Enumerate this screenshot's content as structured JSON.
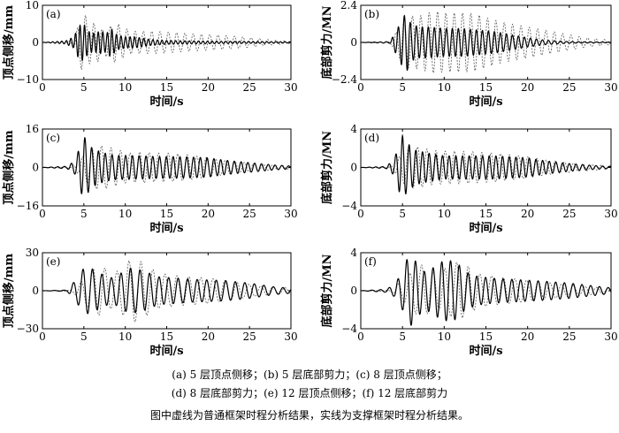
{
  "chart_data": [
    {
      "type": "line",
      "panel_label": "(a)",
      "xlabel": "时间/s",
      "ylabel": "顶点侧移/mm",
      "xlim": [
        0,
        30
      ],
      "ylim": [
        -10,
        10
      ],
      "xticks": [
        0,
        5,
        10,
        15,
        20,
        25,
        30
      ],
      "yticks": [
        -10,
        0,
        10
      ],
      "grid": false,
      "series": [
        {
          "style": "dashed",
          "t": [
            0,
            3.2,
            4.0,
            4.6,
            5.0,
            5.4,
            6.0,
            6.6,
            7.2,
            8.0,
            8.8,
            9.8,
            10.8,
            12.0,
            13.5,
            15.0,
            17.0,
            19.0,
            21.0,
            23.0,
            25.0,
            27.0,
            30.0
          ],
          "amp": [
            0,
            0.3,
            2.0,
            7.0,
            8.0,
            6.5,
            5.0,
            5.5,
            3.5,
            4.0,
            5.5,
            4.0,
            3.0,
            3.0,
            3.0,
            2.8,
            2.5,
            2.2,
            2.0,
            1.7,
            1.3,
            0.8,
            0.3
          ],
          "period": 1.0,
          "phase": 0.3
        },
        {
          "style": "solid",
          "t": [
            0,
            2.8,
            3.8,
            4.4,
            5.0,
            5.5,
            6.2,
            7.0,
            7.8,
            8.2,
            9.0,
            10.0,
            11.0,
            12.0,
            13.0,
            15.0,
            18.0,
            22.0,
            26.0,
            30.0
          ],
          "amp": [
            0,
            0.4,
            1.5,
            4.5,
            5.0,
            3.0,
            2.5,
            3.0,
            2.5,
            4.0,
            2.0,
            1.5,
            1.5,
            1.2,
            0.8,
            0.5,
            0.4,
            0.3,
            0.25,
            0.15
          ],
          "period": 0.55,
          "phase": 0.0
        }
      ]
    },
    {
      "type": "line",
      "panel_label": "(b)",
      "xlabel": "时间/s",
      "ylabel": "底部剪力/MN",
      "xlim": [
        0,
        30
      ],
      "ylim": [
        -2.4,
        2.4
      ],
      "xticks": [
        0,
        5,
        10,
        15,
        20,
        25,
        30
      ],
      "yticks": [
        -2.4,
        0,
        2.4
      ],
      "grid": false,
      "series": [
        {
          "style": "dashed",
          "t": [
            0,
            3.5,
            4.5,
            5.2,
            6.0,
            7.0,
            8.0,
            9.0,
            10.0,
            11.0,
            12.0,
            13.0,
            14.0,
            15.0,
            17.0,
            19.0,
            21.0,
            23.0,
            25.0,
            27.0,
            30.0
          ],
          "amp": [
            0,
            0.05,
            0.9,
            1.6,
            1.7,
            1.7,
            1.9,
            2.0,
            1.9,
            1.9,
            1.9,
            1.9,
            1.8,
            1.6,
            1.3,
            1.1,
            0.9,
            0.7,
            0.5,
            0.3,
            0.15
          ],
          "period": 1.0,
          "phase": 0.3
        },
        {
          "style": "solid",
          "t": [
            0,
            3.5,
            4.5,
            5.0,
            5.5,
            6.0,
            7.0,
            8.0,
            10.0,
            12.0,
            14.0,
            16.0,
            18.0,
            20.0,
            22.0,
            25.0,
            30.0
          ],
          "amp": [
            0,
            0.05,
            1.0,
            1.6,
            1.9,
            1.2,
            1.0,
            1.0,
            0.9,
            0.9,
            0.8,
            0.7,
            0.5,
            0.3,
            0.15,
            0.05,
            0.02
          ],
          "period": 0.72,
          "phase": 0.0
        }
      ]
    },
    {
      "type": "line",
      "panel_label": "(c)",
      "xlabel": "时间/s",
      "ylabel": "顶点侧移/mm",
      "xlim": [
        0,
        30
      ],
      "ylim": [
        -16,
        16
      ],
      "xticks": [
        0,
        5,
        10,
        15,
        20,
        25,
        30
      ],
      "yticks": [
        -16,
        0,
        16
      ],
      "grid": false,
      "series": [
        {
          "style": "dashed",
          "t": [
            0,
            3.5,
            4.5,
            5.5,
            6.5,
            7.5,
            8.5,
            9.5,
            10.5,
            12.0,
            13.5,
            15.0,
            17.0,
            19.0,
            21.0,
            23.0,
            25.0,
            27.0,
            30.0
          ],
          "amp": [
            0,
            0.3,
            3.0,
            7.0,
            9.0,
            9.0,
            8.0,
            7.0,
            6.0,
            6.5,
            6.0,
            6.0,
            5.5,
            4.5,
            3.5,
            2.5,
            1.8,
            1.2,
            0.6
          ],
          "period": 1.15,
          "phase": 0.3
        },
        {
          "style": "solid",
          "t": [
            0,
            3.0,
            4.0,
            4.6,
            5.0,
            5.4,
            6.0,
            7.0,
            8.0,
            9.0,
            10.0,
            12.0,
            14.0,
            16.0,
            18.0,
            20.0,
            22.0,
            25.0,
            28.0,
            30.0
          ],
          "amp": [
            0,
            0.5,
            3.0,
            10.0,
            13.0,
            11.0,
            8.0,
            6.5,
            5.5,
            5.0,
            5.0,
            4.8,
            4.5,
            4.5,
            4.3,
            4.0,
            3.0,
            2.0,
            1.0,
            0.6
          ],
          "period": 0.82,
          "phase": 0.0
        }
      ]
    },
    {
      "type": "line",
      "panel_label": "(d)",
      "xlabel": "时间/s",
      "ylabel": "底部剪力/MN",
      "xlim": [
        0,
        30
      ],
      "ylim": [
        -4,
        4
      ],
      "xticks": [
        0,
        5,
        10,
        15,
        20,
        25,
        30
      ],
      "yticks": [
        -4,
        0,
        4
      ],
      "grid": false,
      "series": [
        {
          "style": "dashed",
          "t": [
            0,
            3.5,
            4.5,
            5.5,
            6.5,
            7.5,
            8.5,
            10.0,
            12.0,
            14.0,
            16.0,
            18.0,
            20.0,
            22.0,
            24.0,
            26.0,
            30.0
          ],
          "amp": [
            0,
            0.05,
            1.0,
            2.0,
            2.2,
            2.0,
            1.8,
            1.7,
            1.7,
            1.6,
            1.5,
            1.3,
            1.1,
            0.8,
            0.6,
            0.4,
            0.15
          ],
          "period": 1.1,
          "phase": 0.3
        },
        {
          "style": "solid",
          "t": [
            0,
            3.0,
            4.0,
            4.6,
            5.0,
            5.5,
            6.5,
            8.0,
            10.0,
            12.0,
            14.0,
            16.0,
            18.0,
            20.0,
            22.0,
            25.0,
            28.0,
            30.0
          ],
          "amp": [
            0,
            0.1,
            0.8,
            2.5,
            3.3,
            2.6,
            1.8,
            1.5,
            1.2,
            1.2,
            1.2,
            1.2,
            1.1,
            1.0,
            0.7,
            0.4,
            0.2,
            0.1
          ],
          "period": 0.8,
          "phase": 0.0
        }
      ]
    },
    {
      "type": "line",
      "panel_label": "(e)",
      "xlabel": "时间/s",
      "ylabel": "顶点侧移/mm",
      "xlim": [
        0,
        30
      ],
      "ylim": [
        -30,
        30
      ],
      "xticks": [
        0,
        5,
        10,
        15,
        20,
        25,
        30
      ],
      "yticks": [
        -30,
        0,
        30
      ],
      "grid": false,
      "series": [
        {
          "style": "dashed",
          "t": [
            0,
            3.5,
            4.5,
            5.5,
            6.5,
            7.5,
            8.5,
            9.5,
            10.5,
            11.5,
            12.5,
            14.0,
            16.0,
            18.0,
            20.0,
            22.0,
            24.0,
            26.0,
            30.0
          ],
          "amp": [
            0,
            0.5,
            6.0,
            14.0,
            20.0,
            18.0,
            13.0,
            18.0,
            24.0,
            25.0,
            20.0,
            14.0,
            12.0,
            11.0,
            10.0,
            8.0,
            6.0,
            4.0,
            2.0
          ],
          "period": 1.45,
          "phase": 0.3
        },
        {
          "style": "solid",
          "t": [
            0,
            3.0,
            4.2,
            5.0,
            5.8,
            6.6,
            7.5,
            8.5,
            9.5,
            10.5,
            11.5,
            12.5,
            14.0,
            16.0,
            18.0,
            20.0,
            22.0,
            25.0,
            28.0,
            30.0
          ],
          "amp": [
            0,
            0.5,
            10.0,
            18.0,
            18.0,
            15.0,
            12.0,
            10.0,
            14.0,
            18.0,
            17.0,
            15.0,
            11.0,
            10.0,
            9.0,
            8.5,
            8.0,
            6.0,
            3.0,
            2.0
          ],
          "period": 1.15,
          "phase": 0.0
        }
      ]
    },
    {
      "type": "line",
      "panel_label": "(f)",
      "xlabel": "时间/s",
      "ylabel": "底部剪力/MN",
      "xlim": [
        0,
        30
      ],
      "ylim": [
        -4,
        4
      ],
      "xticks": [
        0,
        5,
        10,
        15,
        20,
        25,
        30
      ],
      "yticks": [
        -4,
        0,
        4
      ],
      "grid": false,
      "series": [
        {
          "style": "dashed",
          "t": [
            0,
            3.5,
            4.5,
            5.5,
            6.5,
            7.5,
            8.5,
            9.5,
            10.5,
            11.5,
            12.5,
            14.0,
            16.0,
            18.0,
            20.0,
            22.0,
            24.0,
            26.0,
            30.0
          ],
          "amp": [
            0,
            0.05,
            0.7,
            1.5,
            2.4,
            2.8,
            2.0,
            2.0,
            2.6,
            3.0,
            2.8,
            1.8,
            1.5,
            1.3,
            1.1,
            0.9,
            0.7,
            0.5,
            0.25
          ],
          "period": 1.4,
          "phase": 0.3
        },
        {
          "style": "solid",
          "t": [
            0,
            3.0,
            4.0,
            5.0,
            5.7,
            6.2,
            6.8,
            7.5,
            8.5,
            9.5,
            10.5,
            11.5,
            12.5,
            14.0,
            16.0,
            18.0,
            20.0,
            22.0,
            25.0,
            28.0,
            30.0
          ],
          "amp": [
            0,
            0.15,
            0.6,
            2.0,
            3.7,
            3.6,
            2.8,
            2.0,
            2.3,
            3.0,
            3.2,
            3.0,
            2.0,
            1.5,
            1.3,
            1.2,
            1.1,
            1.0,
            0.8,
            0.5,
            0.3
          ],
          "period": 1.05,
          "phase": 0.0
        }
      ]
    }
  ],
  "caption": {
    "line1": "(a) 5 层顶点侧移；(b) 5 层底部剪力；(c) 8 层顶点侧移；",
    "line2": "(d) 8 层底部剪力；(e) 12 层顶点侧移；(f) 12 层底部剪力",
    "note": "图中虚线为普通框架时程分析结果，实线为支撑框架时程分析结果。"
  }
}
